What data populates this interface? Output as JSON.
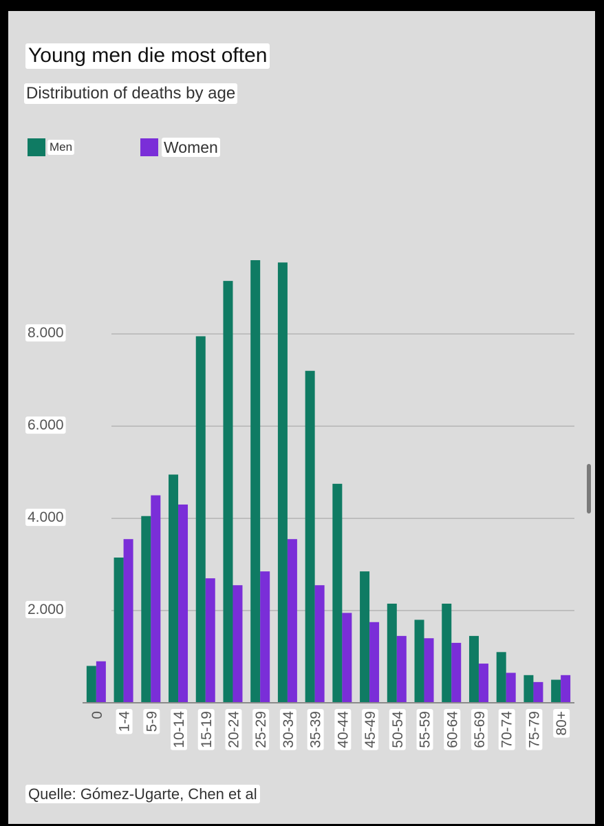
{
  "title": "Young men die most often",
  "subtitle": "Distribution of deaths by age",
  "source": "Quelle: Gómez-Ugarte, Chen et al",
  "colors": {
    "men": "#0f7b63",
    "women": "#7a2ed8",
    "gridline": "#b4b4b4",
    "axis": "#8a8a8a",
    "background": "#dcdcdc"
  },
  "chart_data": {
    "type": "bar",
    "title": "Young men die most often",
    "subtitle": "Distribution of deaths by age",
    "xlabel": "",
    "ylabel": "",
    "categories": [
      "0",
      "1-4",
      "5-9",
      "10-14",
      "15-19",
      "20-24",
      "25-29",
      "30-34",
      "35-39",
      "40-44",
      "45-49",
      "50-54",
      "55-59",
      "60-64",
      "65-69",
      "70-74",
      "75-79",
      "80+"
    ],
    "series": [
      {
        "name": "Men",
        "values": [
          800,
          3150,
          4050,
          4950,
          7950,
          9150,
          9600,
          9550,
          7200,
          4750,
          2850,
          2150,
          1800,
          2150,
          1450,
          1100,
          600,
          500
        ]
      },
      {
        "name": "Women",
        "values": [
          900,
          3550,
          4500,
          4300,
          2700,
          2550,
          2850,
          3550,
          2550,
          1950,
          1750,
          1450,
          1400,
          1300,
          850,
          650,
          450,
          600
        ]
      }
    ],
    "yticks": [
      2000,
      4000,
      6000,
      8000
    ],
    "ytick_labels": [
      "2.000",
      "4.000",
      "6.000",
      "8.000"
    ],
    "ylim": [
      0,
      10600
    ],
    "grid": true,
    "legend": "top-left"
  }
}
